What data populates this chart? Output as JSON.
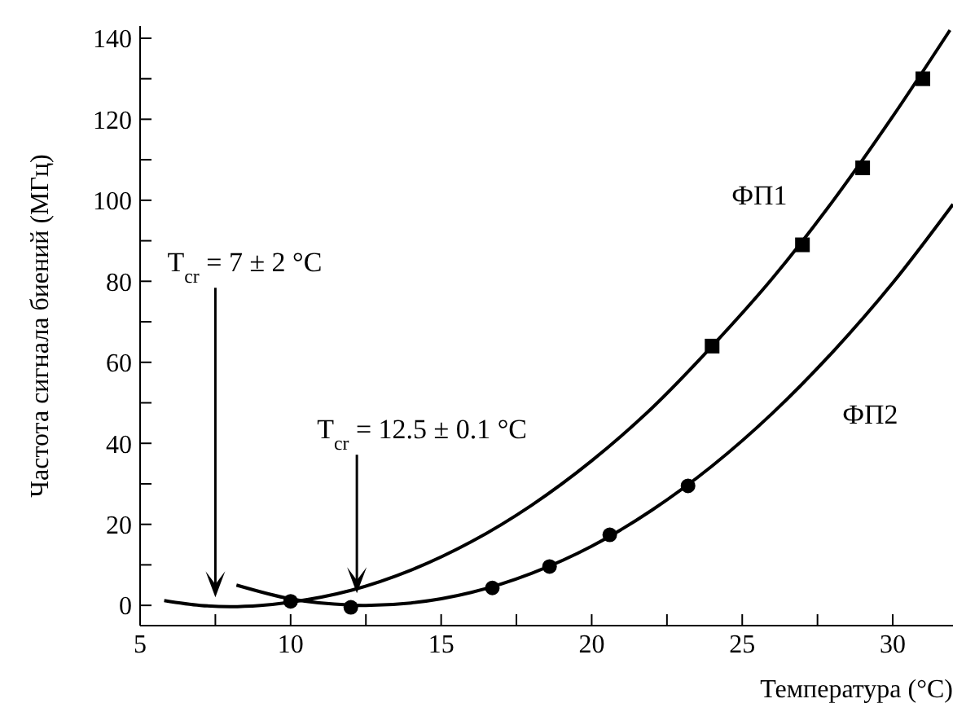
{
  "chart_data": {
    "type": "line",
    "xlabel": "Температура (°C)",
    "ylabel": "Частота сигнала биений (МГц)",
    "xlim": [
      5,
      32
    ],
    "ylim": [
      -5,
      143
    ],
    "xticks": [
      5,
      {
        "value": 7.5,
        "label": null
      },
      10,
      {
        "value": 12.5,
        "label": null
      },
      15,
      {
        "value": 17.5,
        "label": null
      },
      20,
      {
        "value": 22.5,
        "label": null
      },
      25,
      {
        "value": 27.5,
        "label": null
      },
      30
    ],
    "yticks": [
      0,
      {
        "value": 10,
        "label": null
      },
      20,
      {
        "value": 30,
        "label": null
      },
      40,
      {
        "value": 50,
        "label": null
      },
      60,
      {
        "value": 70,
        "label": null
      },
      80,
      {
        "value": 90,
        "label": null
      },
      100,
      {
        "value": 110,
        "label": null
      },
      120,
      {
        "value": 130,
        "label": null
      },
      140
    ],
    "grid": false,
    "legend": false,
    "series": [
      {
        "name": "ФП1",
        "color": "#000000",
        "marker": "none",
        "x": [
          5.8,
          7,
          8,
          9,
          10,
          12,
          14,
          16,
          18,
          20,
          22,
          24,
          26,
          28,
          30,
          31.9
        ],
        "values": [
          1.2,
          0,
          -0.3,
          0,
          0.8,
          3.7,
          8.7,
          15.7,
          24.7,
          35.7,
          48.7,
          64,
          80.7,
          99.7,
          120.7,
          142
        ]
      },
      {
        "type": "scatter",
        "color": "#000000",
        "marker": "square",
        "x": [
          24,
          27,
          29,
          31
        ],
        "values": [
          64,
          89,
          108,
          130
        ]
      },
      {
        "name": "ФП2",
        "color": "#000000",
        "marker": "none",
        "x": [
          8.2,
          10,
          12,
          12.5,
          14,
          16,
          18,
          20,
          22,
          24,
          26,
          28,
          30,
          32
        ],
        "values": [
          5,
          1.6,
          0.1,
          0,
          0.6,
          3.2,
          7.9,
          14.6,
          23.5,
          34.4,
          47.4,
          62.5,
          79.6,
          99
        ]
      },
      {
        "type": "scatter",
        "color": "#000000",
        "marker": "circle",
        "x": [
          10,
          12,
          16.7,
          18.6,
          20.6,
          23.2
        ],
        "values": [
          1,
          -0.5,
          4.3,
          9.6,
          17.4,
          29.5
        ]
      }
    ],
    "annotations": [
      {
        "text": "T$_{cr}$ = 7 ± 2 °C",
        "x": 7.5,
        "y": 2
      },
      {
        "text": "T$_{cr}$ = 12.5 ± 0.1 °C",
        "x": 12.2,
        "y": 3
      }
    ]
  }
}
